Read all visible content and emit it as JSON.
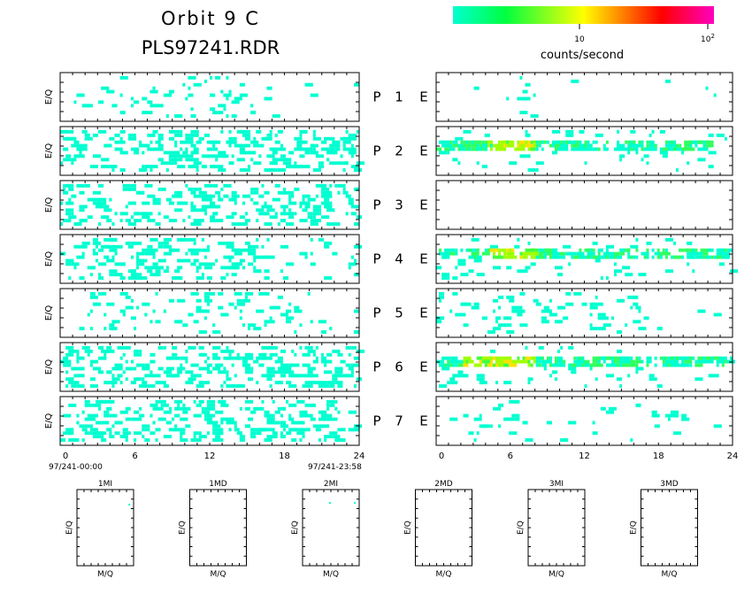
{
  "header": {
    "title_line1": "Orbit 9 C",
    "title_line2": "PLS97241.RDR"
  },
  "colorbar": {
    "label": "counts/second",
    "tick_10": "10",
    "tick_100_base": "10",
    "tick_100_exp": "2",
    "gradient_colors": [
      "#00ffd0",
      "#00ff40",
      "#ffff00",
      "#ff8000",
      "#ff0000",
      "#ff00c0"
    ]
  },
  "axis_labels": {
    "eq": "E/Q",
    "mq": "M/Q"
  },
  "time_axis": {
    "ticks": [
      "0",
      "6",
      "12",
      "18",
      "24"
    ],
    "start_label": "97/241-00:00",
    "end_label": "97/241-23:58"
  },
  "panel_rows": [
    {
      "letter": "P",
      "number": "1",
      "suffix": "E"
    },
    {
      "letter": "P",
      "number": "2",
      "suffix": "E"
    },
    {
      "letter": "P",
      "number": "3",
      "suffix": "E"
    },
    {
      "letter": "P",
      "number": "4",
      "suffix": "E"
    },
    {
      "letter": "P",
      "number": "5",
      "suffix": "E"
    },
    {
      "letter": "P",
      "number": "6",
      "suffix": "E"
    },
    {
      "letter": "P",
      "number": "7",
      "suffix": "E"
    }
  ],
  "mass_panels": [
    "1MI",
    "1MD",
    "2MI",
    "2MD",
    "3MI",
    "3MD"
  ],
  "chart_data": {
    "type": "heatmap",
    "title": "Orbit 9 C PLS97241.RDR",
    "colorbar_label": "counts/second",
    "colorbar_scale": "log",
    "colorbar_ticks": [
      "10",
      "10^2"
    ],
    "x_axis": {
      "range_hours": [
        0,
        24
      ],
      "ticks": [
        0,
        6,
        12,
        18,
        24
      ]
    },
    "ylabel": "E/Q",
    "left_column_activity": [
      {
        "panel": "P 1",
        "level": "sparse",
        "color": "cyan",
        "dense_hours": [
          1,
          15
        ]
      },
      {
        "panel": "P 2",
        "level": "moderate",
        "color": "cyan",
        "dense_hours": [
          0,
          24
        ]
      },
      {
        "panel": "P 3",
        "level": "moderate",
        "color": "cyan",
        "dense_hours": [
          0,
          24
        ]
      },
      {
        "panel": "P 4",
        "level": "moderate",
        "color": "cyan",
        "dense_hours": [
          2,
          17
        ]
      },
      {
        "panel": "P 5",
        "level": "sparse",
        "color": "cyan",
        "dense_hours": [
          2,
          20
        ]
      },
      {
        "panel": "P 6",
        "level": "moderate",
        "color": "cyan",
        "dense_hours": [
          0,
          24
        ]
      },
      {
        "panel": "P 7",
        "level": "moderate",
        "color": "cyan",
        "dense_hours": [
          0,
          22
        ]
      }
    ],
    "right_column_activity": [
      {
        "panel": "P 1",
        "level": "very sparse",
        "peak_rate": "low",
        "active_hours": [
          5,
          8
        ]
      },
      {
        "panel": "P 2",
        "level": "band",
        "peak_rate": "~10",
        "active_hours": [
          0,
          22
        ],
        "strongest_hours": [
          4,
          8
        ]
      },
      {
        "panel": "P 3",
        "level": "none",
        "peak_rate": "none",
        "active_hours": []
      },
      {
        "panel": "P 4",
        "level": "band",
        "peak_rate": "~10",
        "active_hours": [
          0,
          24
        ],
        "strongest_hours": [
          4,
          8
        ]
      },
      {
        "panel": "P 5",
        "level": "sparse",
        "peak_rate": "low",
        "active_hours": [
          0,
          17
        ]
      },
      {
        "panel": "P 6",
        "level": "band",
        "peak_rate": "~10",
        "active_hours": [
          0,
          24
        ],
        "strongest_hours": [
          2,
          8
        ]
      },
      {
        "panel": "P 7",
        "level": "sparse",
        "peak_rate": "low",
        "active_hours": [
          3,
          8
        ]
      }
    ],
    "mass_panels": [
      "1MI",
      "1MD",
      "2MI",
      "2MD",
      "3MI",
      "3MD"
    ],
    "mass_xlabel": "M/Q",
    "mass_ylabel": "E/Q"
  }
}
